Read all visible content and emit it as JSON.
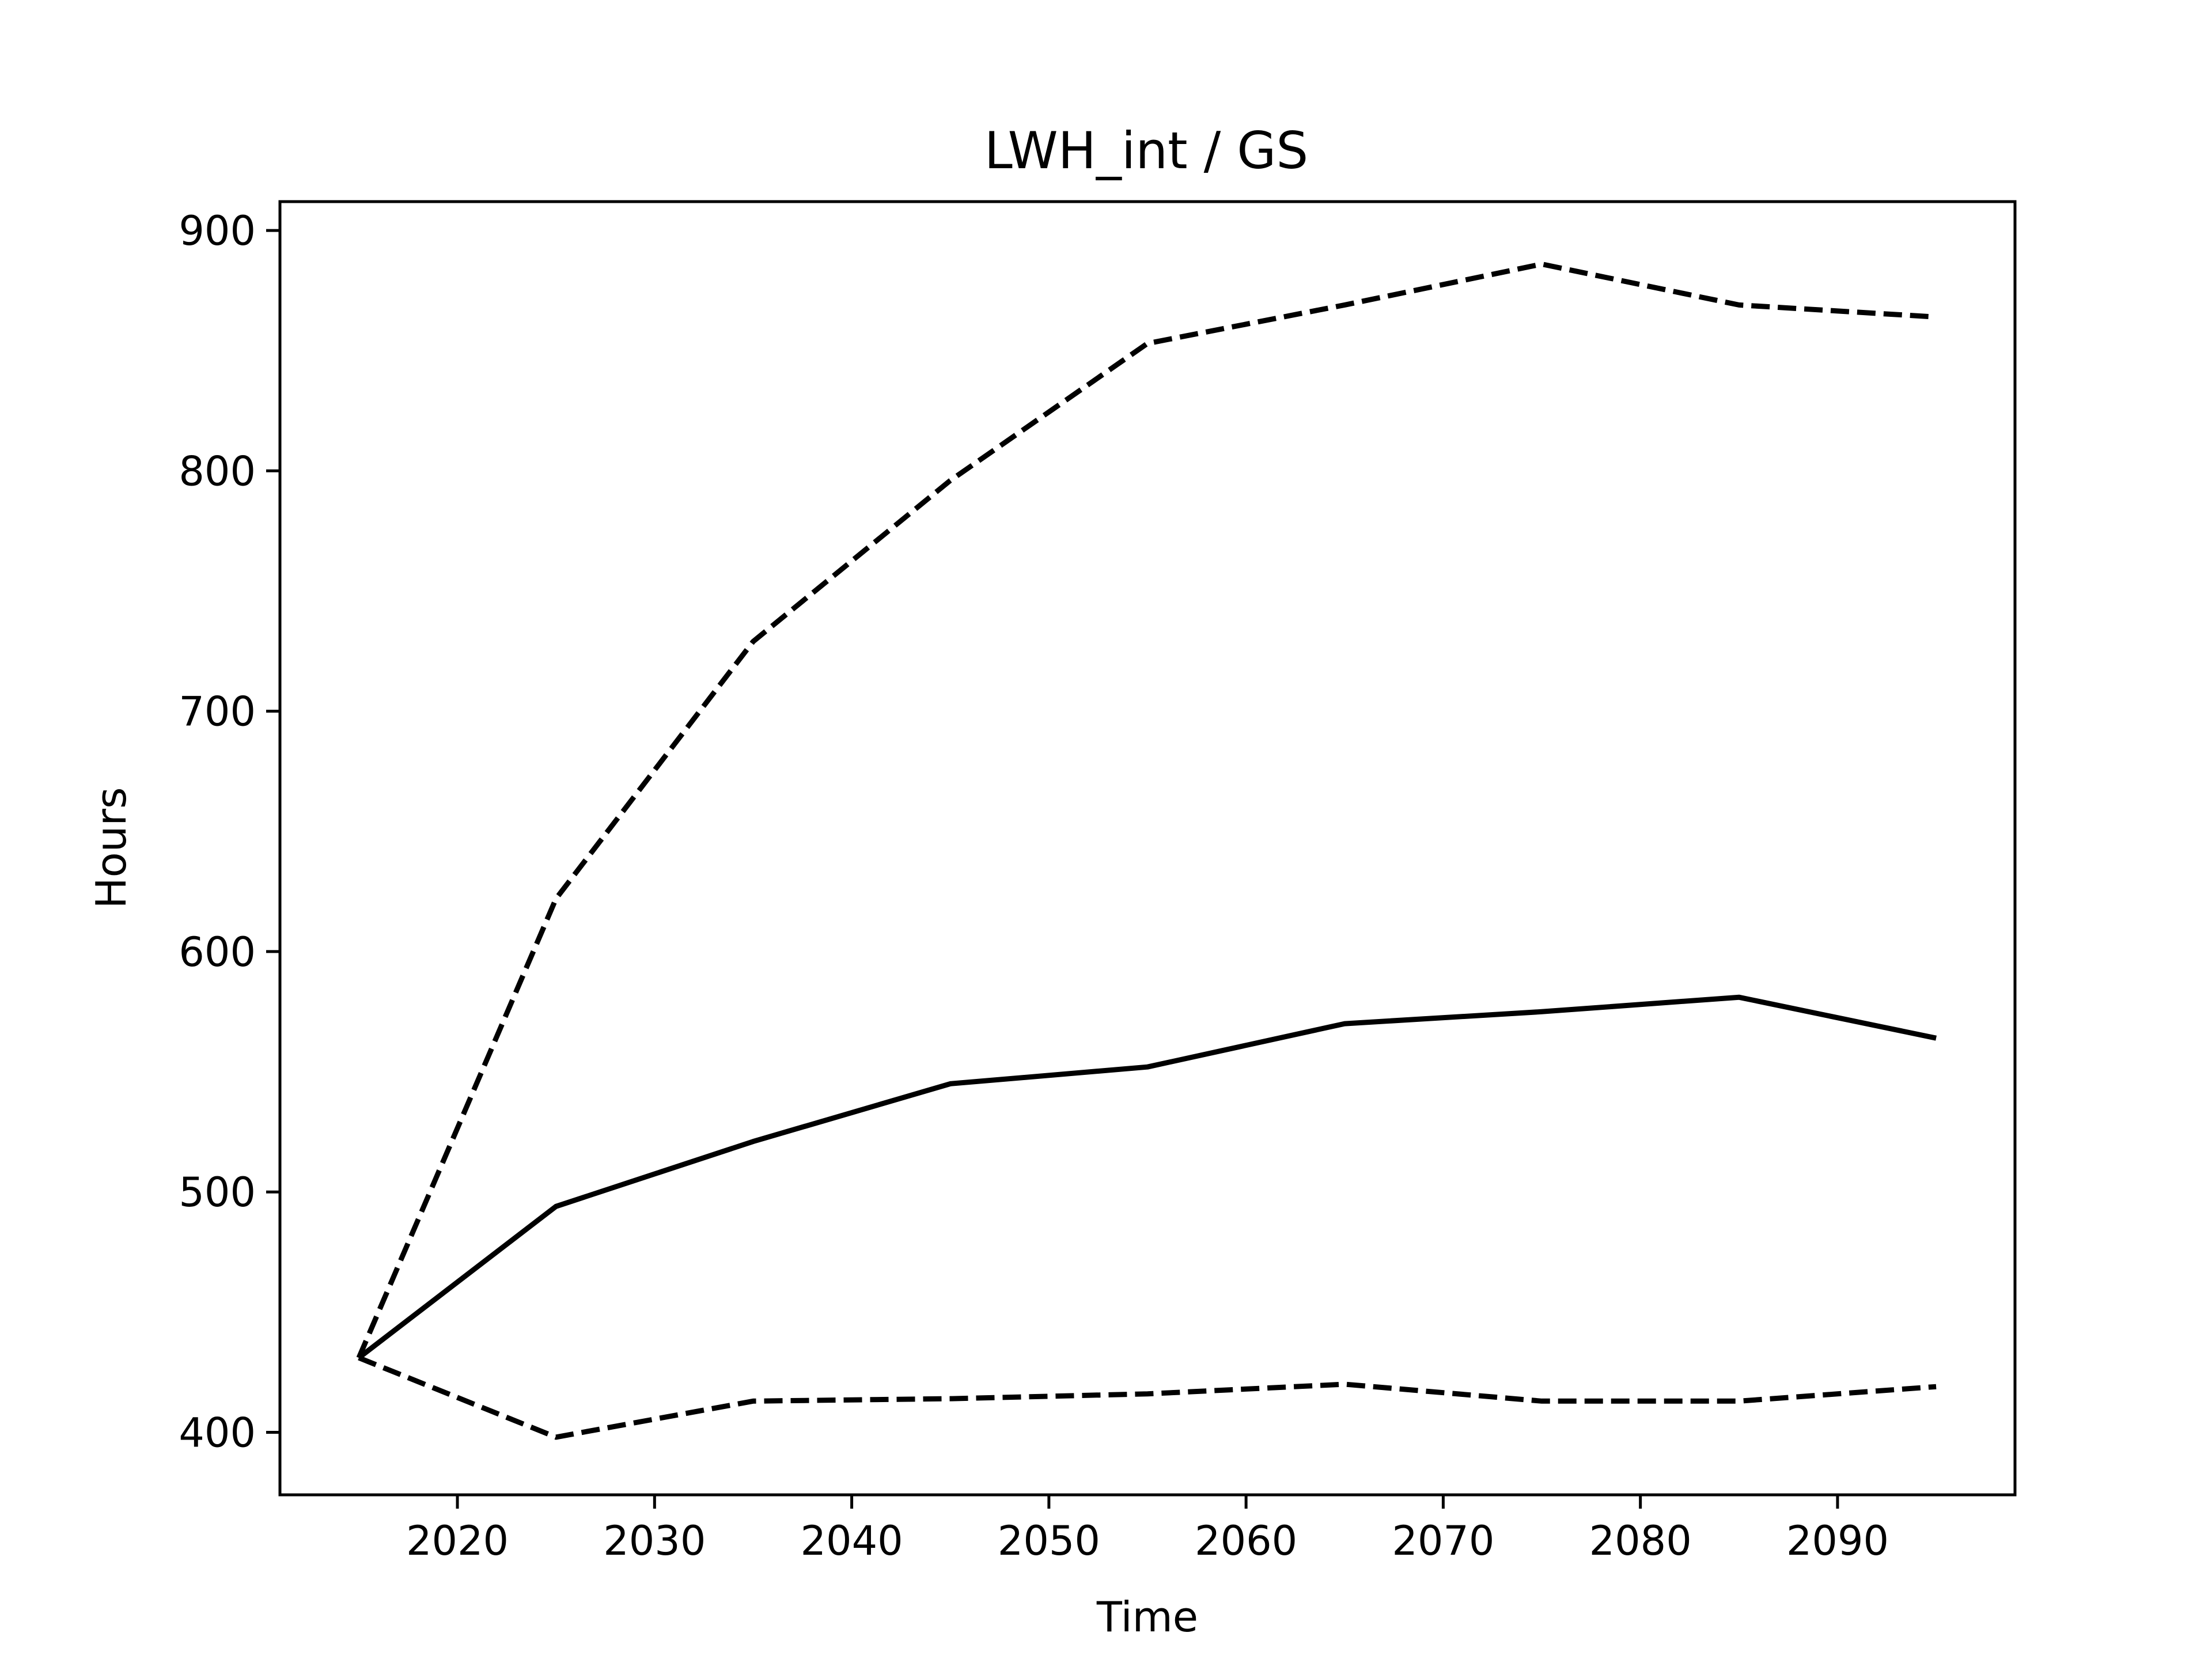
{
  "chart_data": {
    "type": "line",
    "title": "LWH_int / GS",
    "xlabel": "Time",
    "ylabel": "Hours",
    "xlim": [
      2011,
      2099
    ],
    "ylim": [
      374,
      912
    ],
    "xticks": [
      2020,
      2030,
      2040,
      2050,
      2060,
      2070,
      2080,
      2090
    ],
    "yticks": [
      400,
      500,
      600,
      700,
      800,
      900
    ],
    "grid": false,
    "x": [
      2015,
      2025,
      2035,
      2045,
      2055,
      2065,
      2075,
      2085,
      2095
    ],
    "series": [
      {
        "style": "solid",
        "color": "#000000",
        "values": [
          431,
          494,
          521,
          545,
          552,
          570,
          575,
          581,
          564
        ]
      },
      {
        "style": "dashed",
        "color": "#000000",
        "values": [
          431,
          622,
          729,
          796,
          853,
          869,
          886,
          869,
          864
        ]
      },
      {
        "style": "dashed",
        "color": "#000000",
        "values": [
          431,
          398,
          413,
          414,
          416,
          420,
          413,
          413,
          419
        ]
      }
    ]
  }
}
